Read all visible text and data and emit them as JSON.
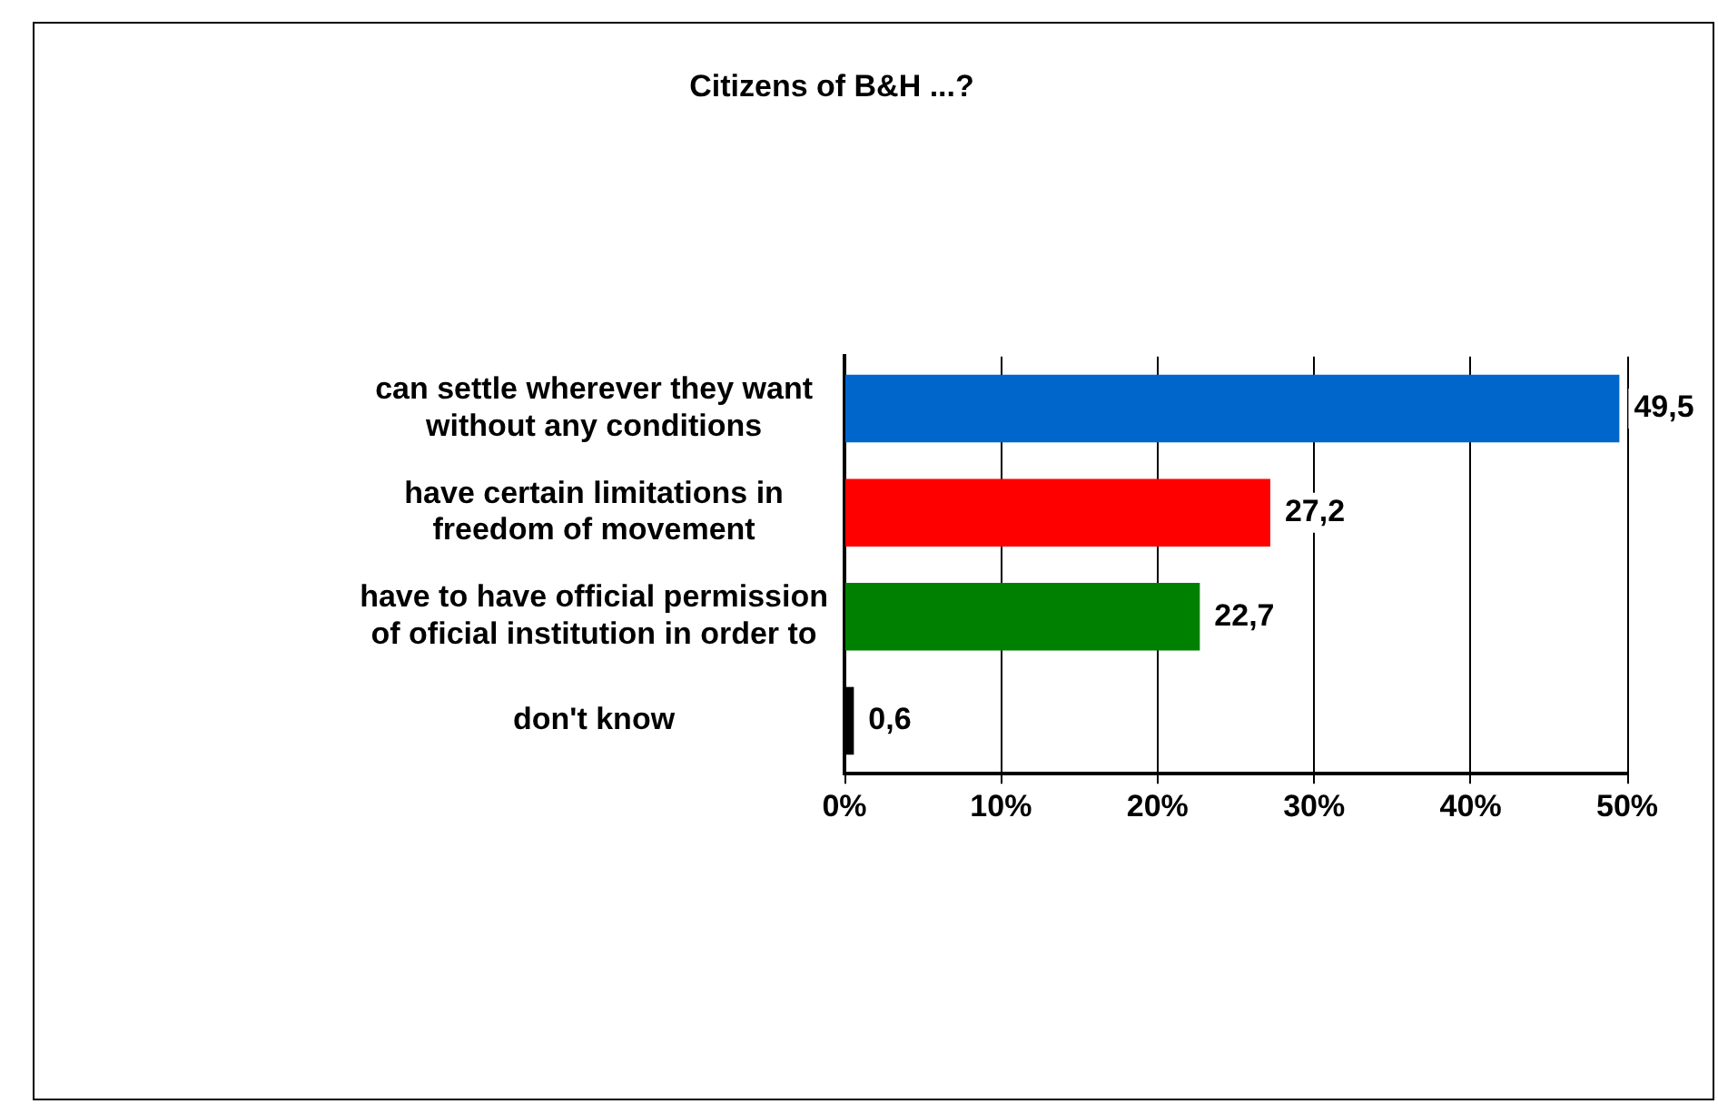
{
  "chart_data": {
    "type": "bar",
    "orientation": "horizontal",
    "title": "Citizens of B&H ...?",
    "categories": [
      "can settle wherever they want\nwithout any conditions",
      "have certain limitations in\nfreedom of movement",
      "have to have official permission\nof oficial institution in order to",
      "don't know"
    ],
    "values": [
      49.5,
      27.2,
      22.7,
      0.6
    ],
    "colors": [
      "#0066cc",
      "#ff0000",
      "#008000",
      "#000000"
    ],
    "value_labels": [
      "49,5",
      "27,2",
      "22,7",
      "0,6"
    ],
    "xlim": [
      0,
      50
    ],
    "xticks": [
      {
        "value": 0,
        "label": "0%"
      },
      {
        "value": 10,
        "label": "10%"
      },
      {
        "value": 20,
        "label": "20%"
      },
      {
        "value": 30,
        "label": "30%"
      },
      {
        "value": 40,
        "label": "40%"
      },
      {
        "value": 50,
        "label": "50%"
      }
    ],
    "grid": "x",
    "legend": false
  }
}
